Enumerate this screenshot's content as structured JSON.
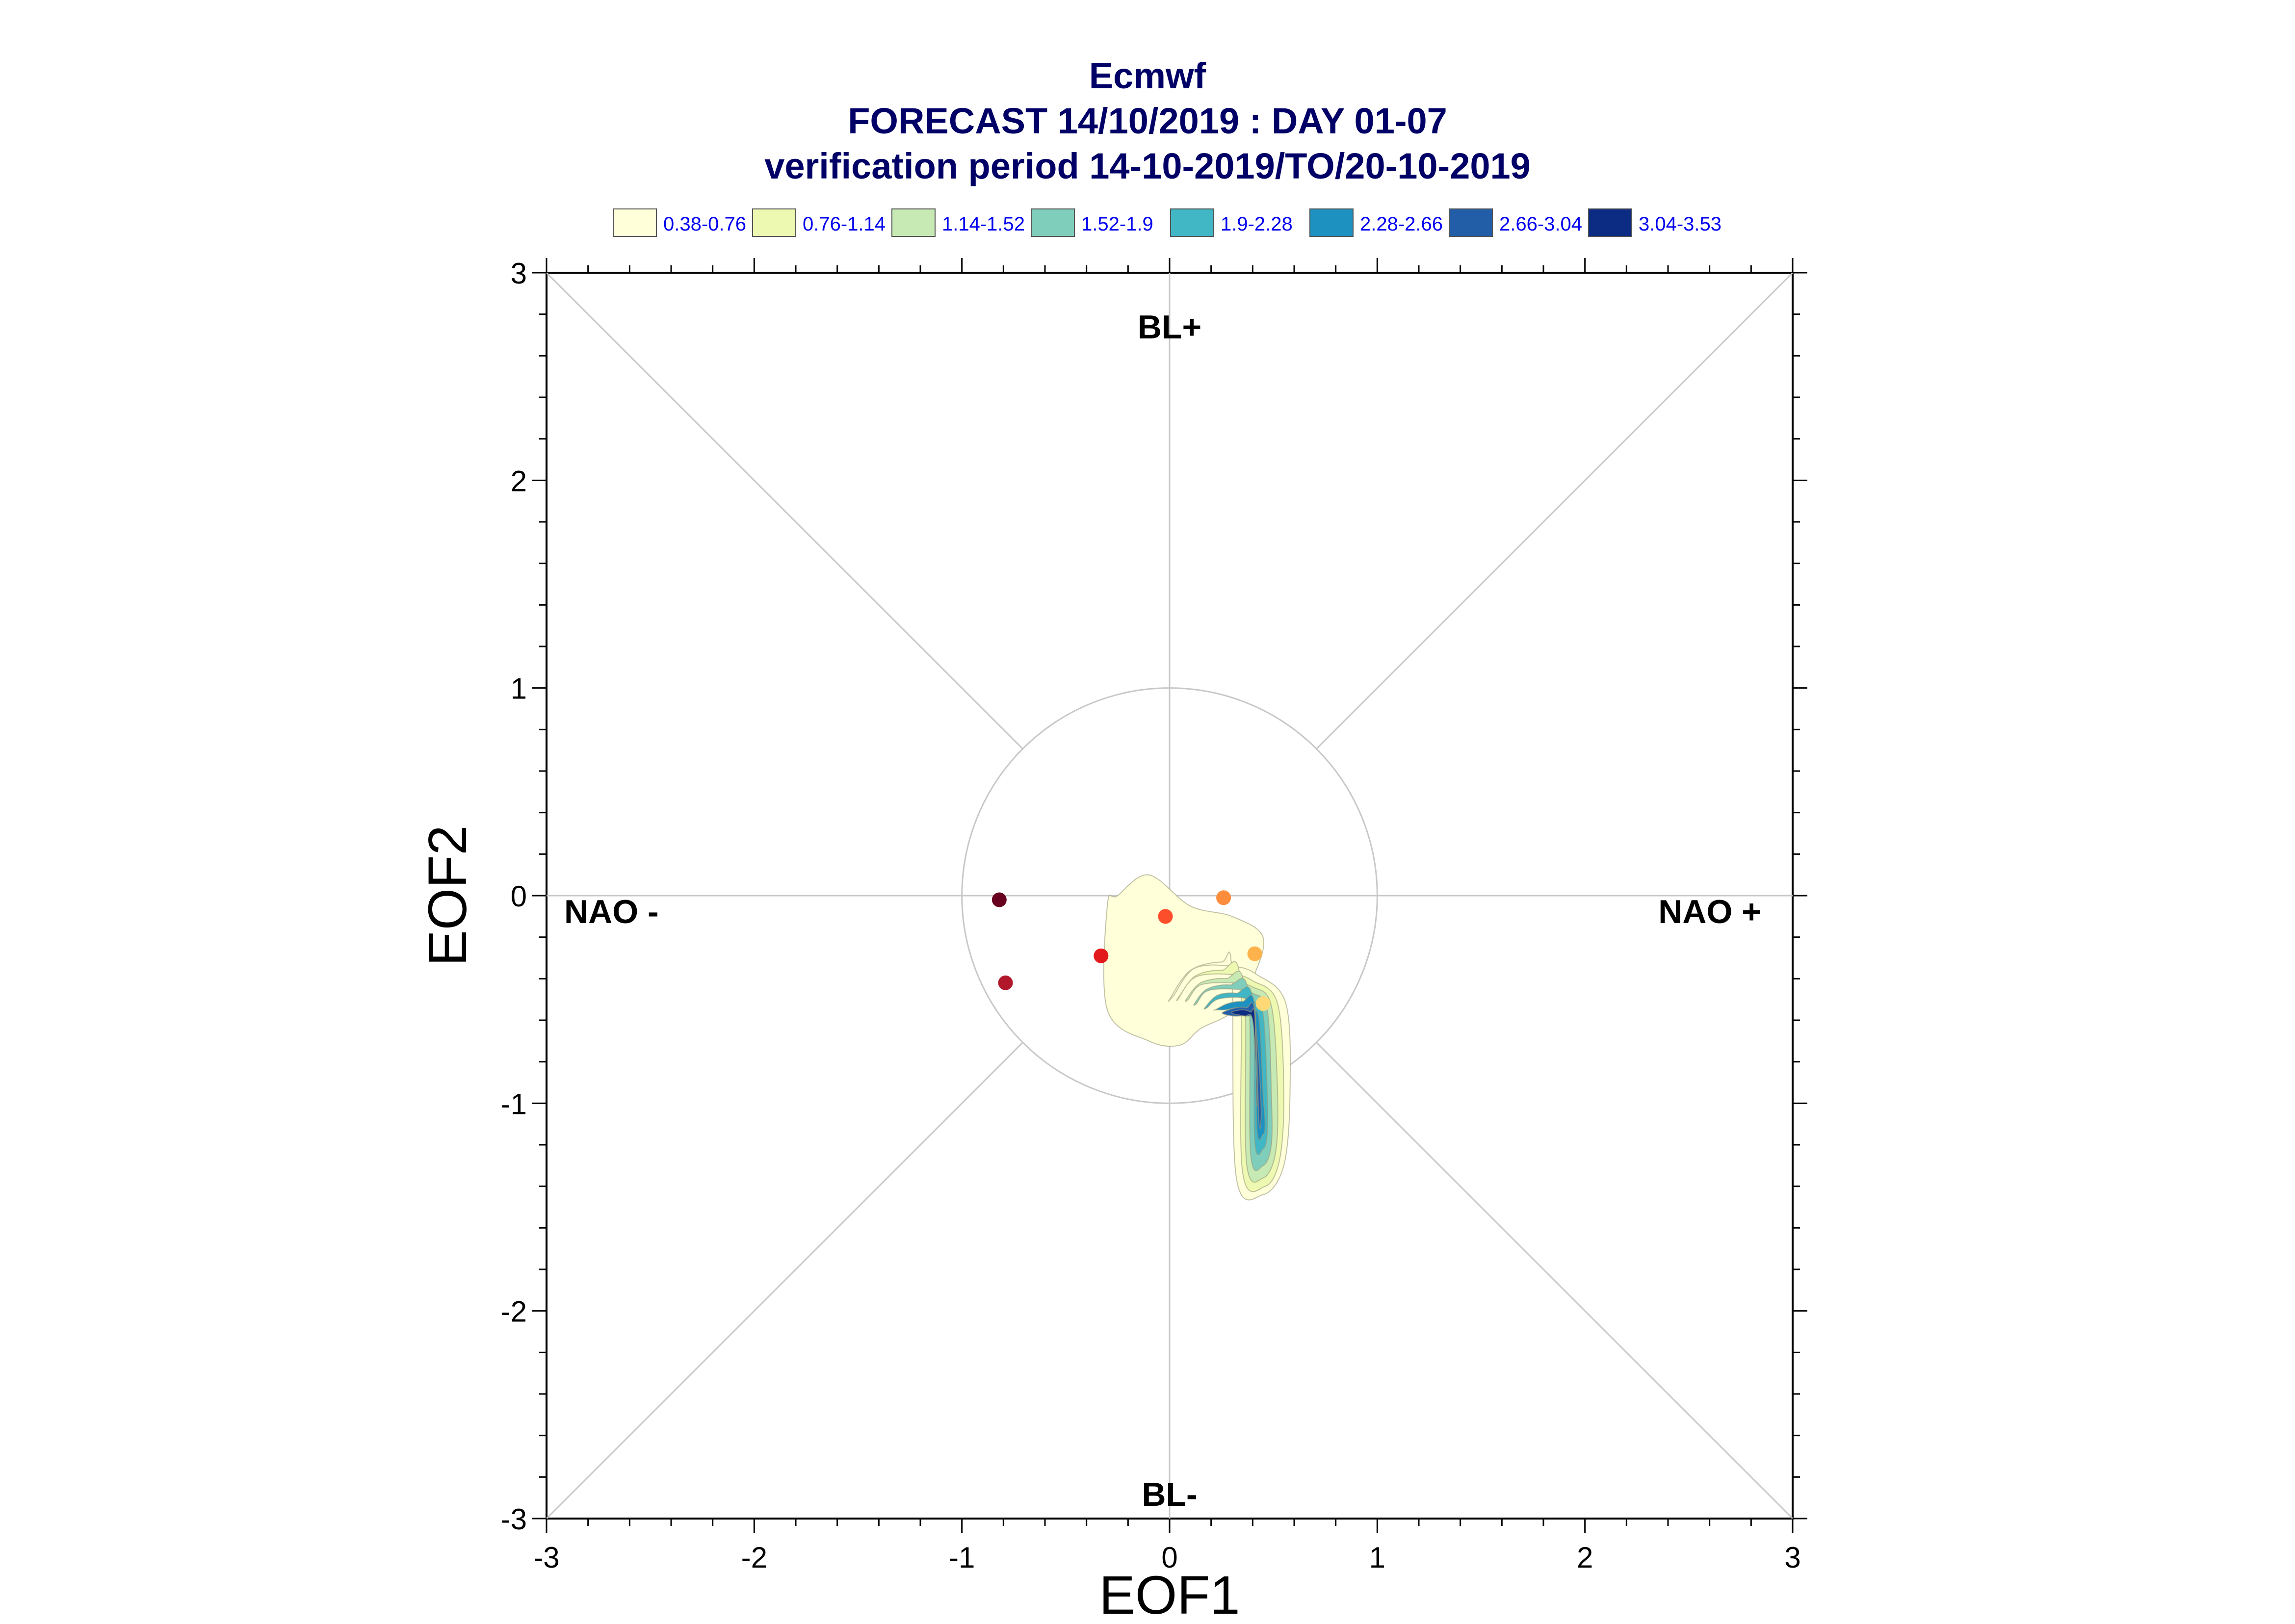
{
  "chart_data": {
    "type": "scatter",
    "title": "Ecmwf",
    "subtitle": "FORECAST 14/10/2019 : DAY 01-07",
    "subtitle2": "verification period 14-10-2019/TO/20-10-2019",
    "xlabel": "EOF1",
    "ylabel": "EOF2",
    "xlim": [
      -3,
      3
    ],
    "ylim": [
      -3,
      3
    ],
    "xticks": [
      "-3",
      "-2",
      "-1",
      "0",
      "1",
      "2",
      "3"
    ],
    "yticks": [
      "-3",
      "-2",
      "-1",
      "0",
      "1",
      "2",
      "3"
    ],
    "grid": false,
    "unit_circle_radius": 1,
    "regimes": {
      "top": "BL+",
      "bottom": "BL-",
      "left": "NAO -",
      "right": "NAO +"
    },
    "legend": {
      "position": "top",
      "entries": [
        {
          "label": "0.38-0.76",
          "color": "#ffffd9"
        },
        {
          "label": "0.76-1.14",
          "color": "#edf8b1"
        },
        {
          "label": "1.14-1.52",
          "color": "#c7e9b4"
        },
        {
          "label": "1.52-1.9",
          "color": "#7fcdbb"
        },
        {
          "label": "1.9-2.28",
          "color": "#41b6c4"
        },
        {
          "label": "2.28-2.66",
          "color": "#1d91c0"
        },
        {
          "label": "2.66-3.04",
          "color": "#225ea8"
        },
        {
          "label": "3.04-3.53",
          "color": "#0c2c84"
        }
      ]
    },
    "points": [
      {
        "x": -0.82,
        "y": -0.02,
        "color": "#67001f"
      },
      {
        "x": -0.79,
        "y": -0.42,
        "color": "#b2182b"
      },
      {
        "x": -0.33,
        "y": -0.29,
        "color": "#e31a1c"
      },
      {
        "x": -0.02,
        "y": -0.1,
        "color": "#fc4e2a"
      },
      {
        "x": 0.26,
        "y": -0.01,
        "color": "#fd8d3c"
      },
      {
        "x": 0.41,
        "y": -0.28,
        "color": "#feb24c"
      },
      {
        "x": 0.45,
        "y": -0.52,
        "color": "#fed976"
      }
    ],
    "density": {
      "levels": [
        0.38,
        0.76,
        1.14,
        1.52,
        1.9,
        2.28,
        2.66,
        3.04
      ],
      "blobs": [
        {
          "x": [
            -0.3,
            -0.3,
            -0.1,
            0.05,
            0.15,
            0.3,
            0.4,
            0.45,
            0.3,
            0.1,
            -0.1,
            -0.25
          ],
          "y": [
            -0.05,
            -0.55,
            -0.7,
            -0.72,
            -0.64,
            -0.56,
            -0.4,
            -0.2,
            -0.1,
            -0.05,
            0.1,
            0.0
          ],
          "level": 0
        },
        {
          "x": [
            0.0,
            0.1,
            0.25,
            0.3,
            0.32,
            0.45,
            0.55,
            0.58,
            0.56,
            0.42,
            0.3,
            0.12,
            0.02
          ],
          "y": [
            -0.5,
            -0.36,
            -0.32,
            -0.36,
            -1.35,
            -1.44,
            -1.3,
            -0.95,
            -0.52,
            -0.38,
            -0.34,
            -0.35,
            -0.48
          ],
          "level": 0
        },
        {
          "x": [
            0.04,
            0.12,
            0.25,
            0.34,
            0.35,
            0.46,
            0.53,
            0.55,
            0.52,
            0.4,
            0.3,
            0.13,
            0.05
          ],
          "y": [
            -0.5,
            -0.39,
            -0.36,
            -0.4,
            -1.32,
            -1.4,
            -1.27,
            -0.95,
            -0.52,
            -0.41,
            -0.38,
            -0.39,
            -0.48
          ],
          "level": 1
        },
        {
          "x": [
            0.08,
            0.15,
            0.27,
            0.36,
            0.37,
            0.45,
            0.51,
            0.52,
            0.49,
            0.4,
            0.3,
            0.15,
            0.09
          ],
          "y": [
            -0.5,
            -0.42,
            -0.4,
            -0.44,
            -1.28,
            -1.36,
            -1.24,
            -0.95,
            -0.53,
            -0.44,
            -0.42,
            -0.43,
            -0.5
          ],
          "level": 2
        },
        {
          "x": [
            0.12,
            0.18,
            0.29,
            0.38,
            0.39,
            0.45,
            0.49,
            0.49,
            0.47,
            0.4,
            0.3,
            0.18,
            0.13
          ],
          "y": [
            -0.52,
            -0.45,
            -0.43,
            -0.47,
            -1.24,
            -1.3,
            -1.2,
            -0.95,
            -0.55,
            -0.47,
            -0.45,
            -0.46,
            -0.52
          ],
          "level": 3
        },
        {
          "x": [
            0.17,
            0.23,
            0.32,
            0.4,
            0.41,
            0.45,
            0.47,
            0.47,
            0.45,
            0.4,
            0.33,
            0.23,
            0.18
          ],
          "y": [
            -0.54,
            -0.48,
            -0.47,
            -0.5,
            -1.18,
            -1.22,
            -1.15,
            -0.95,
            -0.57,
            -0.51,
            -0.49,
            -0.5,
            -0.54
          ],
          "level": 4
        },
        {
          "x": [
            0.22,
            0.28,
            0.35,
            0.41,
            0.42,
            0.45,
            0.46,
            0.45,
            0.43,
            0.39,
            0.33,
            0.27,
            0.22
          ],
          "y": [
            -0.55,
            -0.52,
            -0.51,
            -0.53,
            -1.12,
            -1.15,
            -1.1,
            -0.95,
            -0.59,
            -0.56,
            -0.54,
            -0.55,
            -0.55
          ],
          "level": 5
        },
        {
          "x": [
            0.26,
            0.32,
            0.37,
            0.41,
            0.43,
            0.44,
            0.44,
            0.43,
            0.41,
            0.37,
            0.31,
            0.26
          ],
          "y": [
            -0.56,
            -0.54,
            -0.54,
            -0.56,
            -1.08,
            -1.08,
            -1.0,
            -0.8,
            -0.6,
            -0.58,
            -0.58,
            -0.57
          ],
          "level": 6
        },
        {
          "x": [
            0.3,
            0.35,
            0.39,
            0.41,
            0.42,
            0.42,
            0.4,
            0.36,
            0.31
          ],
          "y": [
            -0.56,
            -0.55,
            -0.56,
            -0.58,
            -1.0,
            -0.9,
            -0.6,
            -0.58,
            -0.57
          ],
          "level": 7
        }
      ]
    }
  }
}
